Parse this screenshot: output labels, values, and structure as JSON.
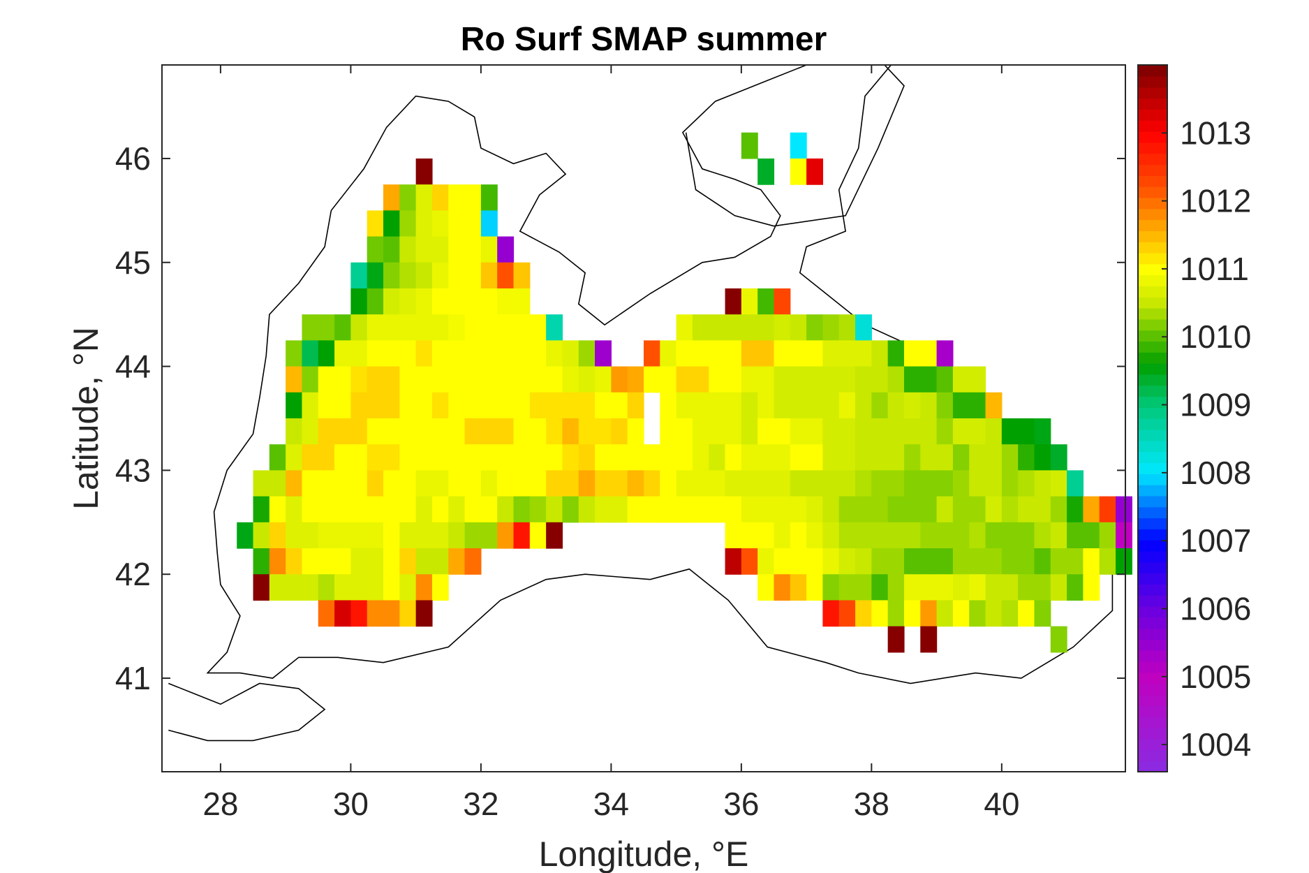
{
  "chart_data": {
    "type": "heatmap",
    "title": "Ro Surf SMAP summer",
    "xlabel": "Longitude, °E",
    "ylabel": "Latitude, °N",
    "xlim": [
      27.1,
      41.9
    ],
    "ylim": [
      40.1,
      46.9
    ],
    "x_ticks": [
      28,
      30,
      32,
      34,
      36,
      38,
      40
    ],
    "y_ticks": [
      41,
      42,
      43,
      44,
      45,
      46
    ],
    "colorbar": {
      "range": [
        1003.6,
        1014.0
      ],
      "ticks": [
        1004,
        1005,
        1006,
        1007,
        1008,
        1009,
        1010,
        1011,
        1012,
        1013
      ],
      "colormap_stops": [
        {
          "value": 1003.6,
          "color": "#8a2be2"
        },
        {
          "value": 1005.0,
          "color": "#c000c0"
        },
        {
          "value": 1006.0,
          "color": "#6a00e0"
        },
        {
          "value": 1007.0,
          "color": "#0000ff"
        },
        {
          "value": 1008.0,
          "color": "#00e8ff"
        },
        {
          "value": 1009.0,
          "color": "#00c878"
        },
        {
          "value": 1009.6,
          "color": "#00a000"
        },
        {
          "value": 1010.5,
          "color": "#c8e800"
        },
        {
          "value": 1011.0,
          "color": "#ffff00"
        },
        {
          "value": 1011.6,
          "color": "#ffa800"
        },
        {
          "value": 1012.2,
          "color": "#ff5000"
        },
        {
          "value": 1013.0,
          "color": "#ff0000"
        },
        {
          "value": 1014.0,
          "color": "#7a0000"
        }
      ]
    },
    "grid": false,
    "cell_size_deg": [
      0.25,
      0.25
    ],
    "rows": [
      {
        "lat": 45.875,
        "lon_start": 31.125,
        "values": [
          1013.9
        ]
      },
      {
        "lat": 45.625,
        "lon_start": 30.625,
        "values": [
          1011.6,
          1010.2,
          1010.7,
          1011.3,
          1011.0,
          1011.0,
          1009.9
        ]
      },
      {
        "lat": 45.375,
        "lon_start": 30.375,
        "values": [
          1011.2,
          1009.6,
          1010.3,
          1010.7,
          1010.8,
          1011.0,
          1011.0,
          1007.9
        ]
      },
      {
        "lat": 45.125,
        "lon_start": 30.375,
        "values": [
          1010.1,
          1010.0,
          1010.5,
          1010.7,
          1010.7,
          1011.0,
          1011.0,
          1010.8,
          1005.5
        ]
      },
      {
        "lat": 44.875,
        "lon_start": 30.125,
        "values": [
          1008.8,
          1009.5,
          1010.2,
          1010.4,
          1010.5,
          1010.8,
          1011.0,
          1011.0,
          1011.4,
          1012.2,
          1011.4
        ]
      },
      {
        "lat": 44.625,
        "lon_start": 30.125,
        "values": [
          1009.6,
          1010.0,
          1010.6,
          1010.7,
          1010.8,
          1011.0,
          1011.0,
          1011.0,
          1011.0,
          1010.9,
          1010.9
        ]
      },
      {
        "lat": 44.375,
        "lon_start": 29.375,
        "values": [
          1010.2,
          1010.2,
          1010.0,
          1010.5,
          1010.8,
          1010.8,
          1010.8,
          1010.8,
          1010.8,
          1010.9,
          1011.0,
          1011.0,
          1011.0,
          1011.0,
          1011.0,
          1008.6
        ]
      },
      {
        "lat": 44.125,
        "lon_start": 29.125,
        "values": [
          1010.2,
          1009.2,
          1009.6,
          1010.8,
          1010.8,
          1011.0,
          1011.0,
          1011.0,
          1011.2,
          1011.0,
          1011.0,
          1011.0,
          1011.0,
          1011.0,
          1011.0,
          1011.0,
          1010.8,
          1010.7,
          1010.3,
          1005.4
        ]
      },
      {
        "lat": 43.875,
        "lon_start": 29.125,
        "values": [
          1011.5,
          1010.2,
          1011.0,
          1011.0,
          1011.2,
          1011.3,
          1011.3,
          1011.0,
          1011.0,
          1011.0,
          1011.0,
          1011.0,
          1011.0,
          1011.0,
          1011.0,
          1011.0,
          1011.0,
          1010.8,
          1010.7,
          1010.8,
          1011.7,
          1011.6
        ]
      },
      {
        "lat": 43.625,
        "lon_start": 29.125,
        "values": [
          1009.6,
          1010.7,
          1011.0,
          1011.0,
          1011.3,
          1011.3,
          1011.3,
          1011.0,
          1011.0,
          1011.2,
          1011.0,
          1011.0,
          1011.0,
          1011.0,
          1011.0,
          1011.2,
          1011.2,
          1011.2,
          1011.2,
          1011.0,
          1011.0,
          1011.3
        ]
      },
      {
        "lat": 43.375,
        "lon_start": 29.125,
        "values": [
          1010.5,
          1010.7,
          1011.3,
          1011.3,
          1011.3,
          1011.0,
          1011.0,
          1011.0,
          1011.0,
          1011.0,
          1011.0,
          1011.3,
          1011.3,
          1011.3,
          1011.0,
          1011.0,
          1011.2,
          1011.5,
          1011.2,
          1011.2,
          1011.3,
          1011.0
        ]
      },
      {
        "lat": 43.125,
        "lon_start": 28.875,
        "values": [
          1010.0,
          1010.7,
          1011.3,
          1011.3,
          1011.0,
          1011.0,
          1011.2,
          1011.2,
          1011.0,
          1011.0,
          1011.0,
          1011.0,
          1011.0,
          1011.0,
          1011.0,
          1011.0,
          1011.0,
          1011.0,
          1011.2,
          1011.3,
          1011.0,
          1011.0,
          1011.0,
          1011.0,
          1011.0,
          1011.0,
          1011.0
        ]
      },
      {
        "lat": 42.875,
        "lon_start": 28.625,
        "values": [
          1010.5,
          1010.5,
          1011.5,
          1011.0,
          1011.0,
          1011.0,
          1011.0,
          1011.3,
          1011.0,
          1011.0,
          1010.8,
          1010.8,
          1011.0,
          1011.0,
          1010.8,
          1011.0,
          1011.0,
          1011.0,
          1011.3,
          1011.3,
          1011.6,
          1011.3,
          1011.3,
          1011.5,
          1011.3,
          1011.0,
          1011.0,
          1011.0,
          1011.0,
          1011.0
        ]
      },
      {
        "lat": 42.625,
        "lon_start": 28.625,
        "values": [
          1009.7,
          1011.0,
          1010.7,
          1011.0,
          1011.0,
          1011.0,
          1011.0,
          1011.0,
          1011.0,
          1011.0,
          1010.7,
          1011.0,
          1010.7,
          1011.0,
          1011.0,
          1010.5,
          1010.2,
          1010.3,
          1010.5,
          1010.2,
          1010.5,
          1010.7,
          1010.7,
          1011.0,
          1011.0,
          1011.0,
          1011.0
        ]
      },
      {
        "lat": 42.375,
        "lon_start": 28.375,
        "values": [
          1009.5,
          1010.5,
          1011.3,
          1010.7,
          1010.7,
          1010.8,
          1010.8,
          1010.8,
          1010.8,
          1011.0,
          1010.7,
          1010.7,
          1010.7,
          1010.5,
          1010.3,
          1010.3,
          1011.7,
          1012.8,
          1011.0,
          1013.9
        ]
      },
      {
        "lat": 42.125,
        "lon_start": 28.625,
        "values": [
          1009.8,
          1011.8,
          1011.3,
          1011.0,
          1011.0,
          1011.0,
          1010.7,
          1010.7,
          1011.0,
          1011.3,
          1010.5,
          1010.5,
          1011.6,
          1012.0
        ]
      },
      {
        "lat": 41.875,
        "lon_start": 28.625,
        "values": [
          1013.9,
          1010.6,
          1010.6,
          1010.6,
          1010.4,
          1010.7,
          1010.7,
          1010.7,
          1011.0,
          1010.7,
          1011.8,
          1011.0
        ]
      },
      {
        "lat": 41.625,
        "lon_start": 29.625,
        "values": [
          1012.0,
          1013.3,
          1012.8,
          1011.8,
          1011.8,
          1011.3,
          1013.9
        ]
      },
      {
        "lat": 44.625,
        "lon_start": 35.875,
        "values": [
          1013.9,
          1010.8,
          1009.9,
          1012.3
        ]
      },
      {
        "lat": 44.375,
        "lon_start": 35.125,
        "values": [
          1010.8,
          1010.5,
          1010.5,
          1010.5,
          1010.5,
          1010.5,
          1010.6,
          1010.5,
          1010.2,
          1010.3,
          1010.4,
          1008.3
        ]
      },
      {
        "lat": 44.125,
        "lon_start": 34.625,
        "values": [
          1012.2,
          1010.8,
          1011.0,
          1011.0,
          1011.0,
          1011.0,
          1011.4,
          1011.4,
          1011.0,
          1011.0,
          1011.0,
          1010.7,
          1010.7,
          1010.7,
          1010.5,
          1009.8,
          1011.0,
          1011.0,
          1005.3
        ]
      },
      {
        "lat": 43.875,
        "lon_start": 34.625,
        "values": [
          1011.0,
          1011.0,
          1011.3,
          1011.3,
          1011.0,
          1011.0,
          1010.8,
          1010.8,
          1010.6,
          1010.6,
          1010.6,
          1010.6,
          1010.6,
          1010.5,
          1010.5,
          1010.4,
          1009.8,
          1009.8,
          1010.0,
          1010.6,
          1010.6
        ]
      },
      {
        "lat": 43.625,
        "lon_start": 34.875,
        "values": [
          1011.0,
          1010.8,
          1010.8,
          1010.8,
          1010.8,
          1010.6,
          1010.8,
          1010.6,
          1010.6,
          1010.6,
          1010.6,
          1010.8,
          1010.5,
          1010.3,
          1010.5,
          1010.6,
          1010.5,
          1010.2,
          1009.8,
          1009.8,
          1011.5
        ]
      },
      {
        "lat": 43.375,
        "lon_start": 34.875,
        "values": [
          1011.0,
          1011.0,
          1010.8,
          1010.8,
          1010.8,
          1010.6,
          1011.0,
          1011.0,
          1010.8,
          1010.8,
          1010.6,
          1010.6,
          1010.5,
          1010.5,
          1010.5,
          1010.5,
          1010.5,
          1010.3,
          1010.6,
          1010.6,
          1010.5,
          1009.6,
          1009.6,
          1009.5
        ]
      },
      {
        "lat": 43.125,
        "lon_start": 34.875,
        "values": [
          1011.0,
          1011.0,
          1010.8,
          1010.6,
          1011.0,
          1010.8,
          1010.8,
          1010.8,
          1011.0,
          1011.0,
          1010.6,
          1010.6,
          1010.5,
          1010.5,
          1010.5,
          1010.3,
          1010.5,
          1010.5,
          1010.2,
          1010.5,
          1010.5,
          1010.3,
          1009.8,
          1009.6,
          1009.4
        ]
      },
      {
        "lat": 42.875,
        "lon_start": 34.875,
        "values": [
          1011.0,
          1010.8,
          1010.8,
          1010.8,
          1010.7,
          1010.7,
          1010.7,
          1010.7,
          1010.5,
          1010.5,
          1010.5,
          1010.5,
          1010.4,
          1010.3,
          1010.3,
          1010.2,
          1010.2,
          1010.2,
          1010.3,
          1010.5,
          1010.5,
          1010.3,
          1010.4,
          1010.5,
          1010.6,
          1008.8
        ]
      },
      {
        "lat": 42.625,
        "lon_start": 34.875,
        "values": [
          1011.0,
          1011.0,
          1011.0,
          1011.0,
          1011.0,
          1010.8,
          1010.8,
          1010.8,
          1010.8,
          1010.7,
          1010.5,
          1010.3,
          1010.3,
          1010.3,
          1010.2,
          1010.2,
          1010.2,
          1010.5,
          1010.3,
          1010.3,
          1010.6,
          1010.4,
          1010.5,
          1010.5,
          1010.3,
          1009.7,
          1011.6,
          1012.4,
          1005.5
        ]
      },
      {
        "lat": 42.375,
        "lon_start": 35.875,
        "values": [
          1011.0,
          1011.0,
          1011.0,
          1010.8,
          1011.0,
          1010.8,
          1010.6,
          1010.4,
          1010.4,
          1010.4,
          1010.4,
          1010.4,
          1010.3,
          1010.3,
          1010.3,
          1010.4,
          1010.2,
          1010.2,
          1010.2,
          1010.4,
          1010.5,
          1010.0,
          1010.0,
          1010.3,
          1005.0
        ]
      },
      {
        "lat": 42.125,
        "lon_start": 35.875,
        "values": [
          1013.5,
          1012.2,
          1010.8,
          1011.0,
          1011.0,
          1011.0,
          1010.8,
          1010.6,
          1010.5,
          1010.3,
          1010.3,
          1010.0,
          1010.0,
          1010.0,
          1010.3,
          1010.3,
          1010.3,
          1010.2,
          1010.2,
          1010.0,
          1010.3,
          1010.3,
          1011.0,
          1010.4,
          1009.6
        ]
      },
      {
        "lat": 41.875,
        "lon_start": 36.375,
        "values": [
          1011.0,
          1011.8,
          1011.4,
          1011.0,
          1010.2,
          1010.3,
          1010.3,
          1009.9,
          1010.3,
          1010.8,
          1010.8,
          1010.8,
          1010.7,
          1010.8,
          1010.5,
          1010.5,
          1010.3,
          1010.3,
          1010.5,
          1010.0,
          1011.0
        ]
      },
      {
        "lat": 41.625,
        "lon_start": 37.375,
        "values": [
          1012.8,
          1012.3,
          1011.3,
          1011.0,
          1010.3,
          1011.0,
          1011.7,
          1010.5,
          1011.0,
          1010.3,
          1010.5,
          1010.4,
          1011.0,
          1010.2
        ]
      },
      {
        "lat": 41.375,
        "lon_start": 38.375,
        "values": [
          1013.9,
          null,
          1013.9,
          null,
          null,
          null,
          null,
          null,
          null,
          null,
          1010.2
        ]
      },
      {
        "lat": 46.125,
        "lon_start": 36.125,
        "values": [
          1010.0,
          null,
          null,
          1008.0
        ]
      },
      {
        "lat": 45.875,
        "lon_start": 36.375,
        "values": [
          1009.4,
          null,
          1011.0,
          1013.2
        ]
      }
    ]
  }
}
